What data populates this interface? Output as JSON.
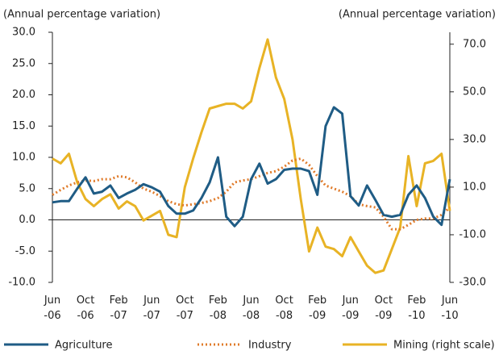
{
  "chart_data": {
    "type": "line",
    "y_axis_label": "(Annual percentage variation)",
    "y2_axis_label": "(Annual percentage variation)",
    "categories": [
      "Jun -06",
      null,
      null,
      null,
      "Oct -06",
      null,
      null,
      null,
      "Feb -07",
      null,
      null,
      null,
      "Jun -07",
      null,
      null,
      null,
      "Oct -07",
      null,
      null,
      null,
      "Feb -08",
      null,
      null,
      null,
      "Jun -08",
      null,
      null,
      null,
      "Oct -08",
      null,
      null,
      null,
      "Feb -09",
      null,
      null,
      null,
      "Jun -09",
      null,
      null,
      null,
      "Oct -09",
      null,
      null,
      null,
      "Feb -10",
      null,
      null,
      null,
      "Jun -10"
    ],
    "ylim": [
      -10,
      30
    ],
    "yticks": [
      {
        "value": -10,
        "label": "-10.0"
      },
      {
        "value": -5,
        "label": "-5.0"
      },
      {
        "value": 0,
        "label": "0.0"
      },
      {
        "value": 5,
        "label": "5.0"
      },
      {
        "value": 10,
        "label": "10.0"
      },
      {
        "value": 15,
        "label": "15.0"
      },
      {
        "value": 20,
        "label": "20.0"
      },
      {
        "value": 25,
        "label": "25.0"
      },
      {
        "value": 30,
        "label": "30.0"
      }
    ],
    "y2lim": [
      -30,
      75
    ],
    "y2ticks": [
      {
        "value": -30,
        "label": "-30.0"
      },
      {
        "value": -10,
        "label": "-10.0"
      },
      {
        "value": 10,
        "label": "10.0"
      },
      {
        "value": 30,
        "label": "30.0"
      },
      {
        "value": 50,
        "label": "50.0"
      },
      {
        "value": 70,
        "label": "70.0"
      }
    ],
    "series": [
      {
        "name": "Agriculture",
        "color": "#1f5c85",
        "dash": "solid",
        "values": [
          2.8,
          3.0,
          3.0,
          5.0,
          6.8,
          4.2,
          4.5,
          5.5,
          3.5,
          4.2,
          4.8,
          5.7,
          5.2,
          4.5,
          2.2,
          1.0,
          1.0,
          1.5,
          3.5,
          6.0,
          10.0,
          0.5,
          -1.0,
          0.5,
          6.5,
          9.0,
          5.8,
          6.5,
          8.0,
          8.2,
          8.2,
          7.8,
          4.0,
          15.0,
          18.0,
          17.0,
          3.8,
          2.3,
          5.5,
          3.2,
          0.8,
          0.5,
          0.8,
          4.0,
          5.5,
          3.5,
          0.5,
          -0.8,
          6.5
        ]
      },
      {
        "name": "Industry",
        "color": "#e07b2a",
        "dash": "dotted",
        "values": [
          4.0,
          4.8,
          5.5,
          6.0,
          6.3,
          6.2,
          6.5,
          6.5,
          7.0,
          6.8,
          6.0,
          5.0,
          4.5,
          3.8,
          3.0,
          2.5,
          2.3,
          2.5,
          2.7,
          3.0,
          3.5,
          4.5,
          6.0,
          6.3,
          6.5,
          7.0,
          7.5,
          7.8,
          8.5,
          9.5,
          9.8,
          8.8,
          7.0,
          5.5,
          5.0,
          4.5,
          3.8,
          2.5,
          2.2,
          2.0,
          0.5,
          -1.5,
          -1.5,
          -0.8,
          0.0,
          0.2,
          0.2,
          0.8,
          2.0
        ]
      },
      {
        "name": "Mining (right scale)",
        "color": "#e8b325",
        "dash": "solid",
        "axis": "y2",
        "values": [
          22,
          20,
          24,
          12,
          5,
          2,
          5,
          7,
          1,
          4,
          2,
          -4,
          -2,
          0,
          -10,
          -11,
          10,
          22,
          33,
          43,
          44,
          45,
          45,
          43,
          46,
          60,
          72,
          56,
          47,
          30,
          5,
          -17,
          -7,
          -15,
          -16,
          -19,
          -11,
          -17,
          -23,
          -26,
          -25,
          -16,
          -7,
          23,
          2,
          20,
          21,
          24,
          0
        ]
      }
    ]
  }
}
